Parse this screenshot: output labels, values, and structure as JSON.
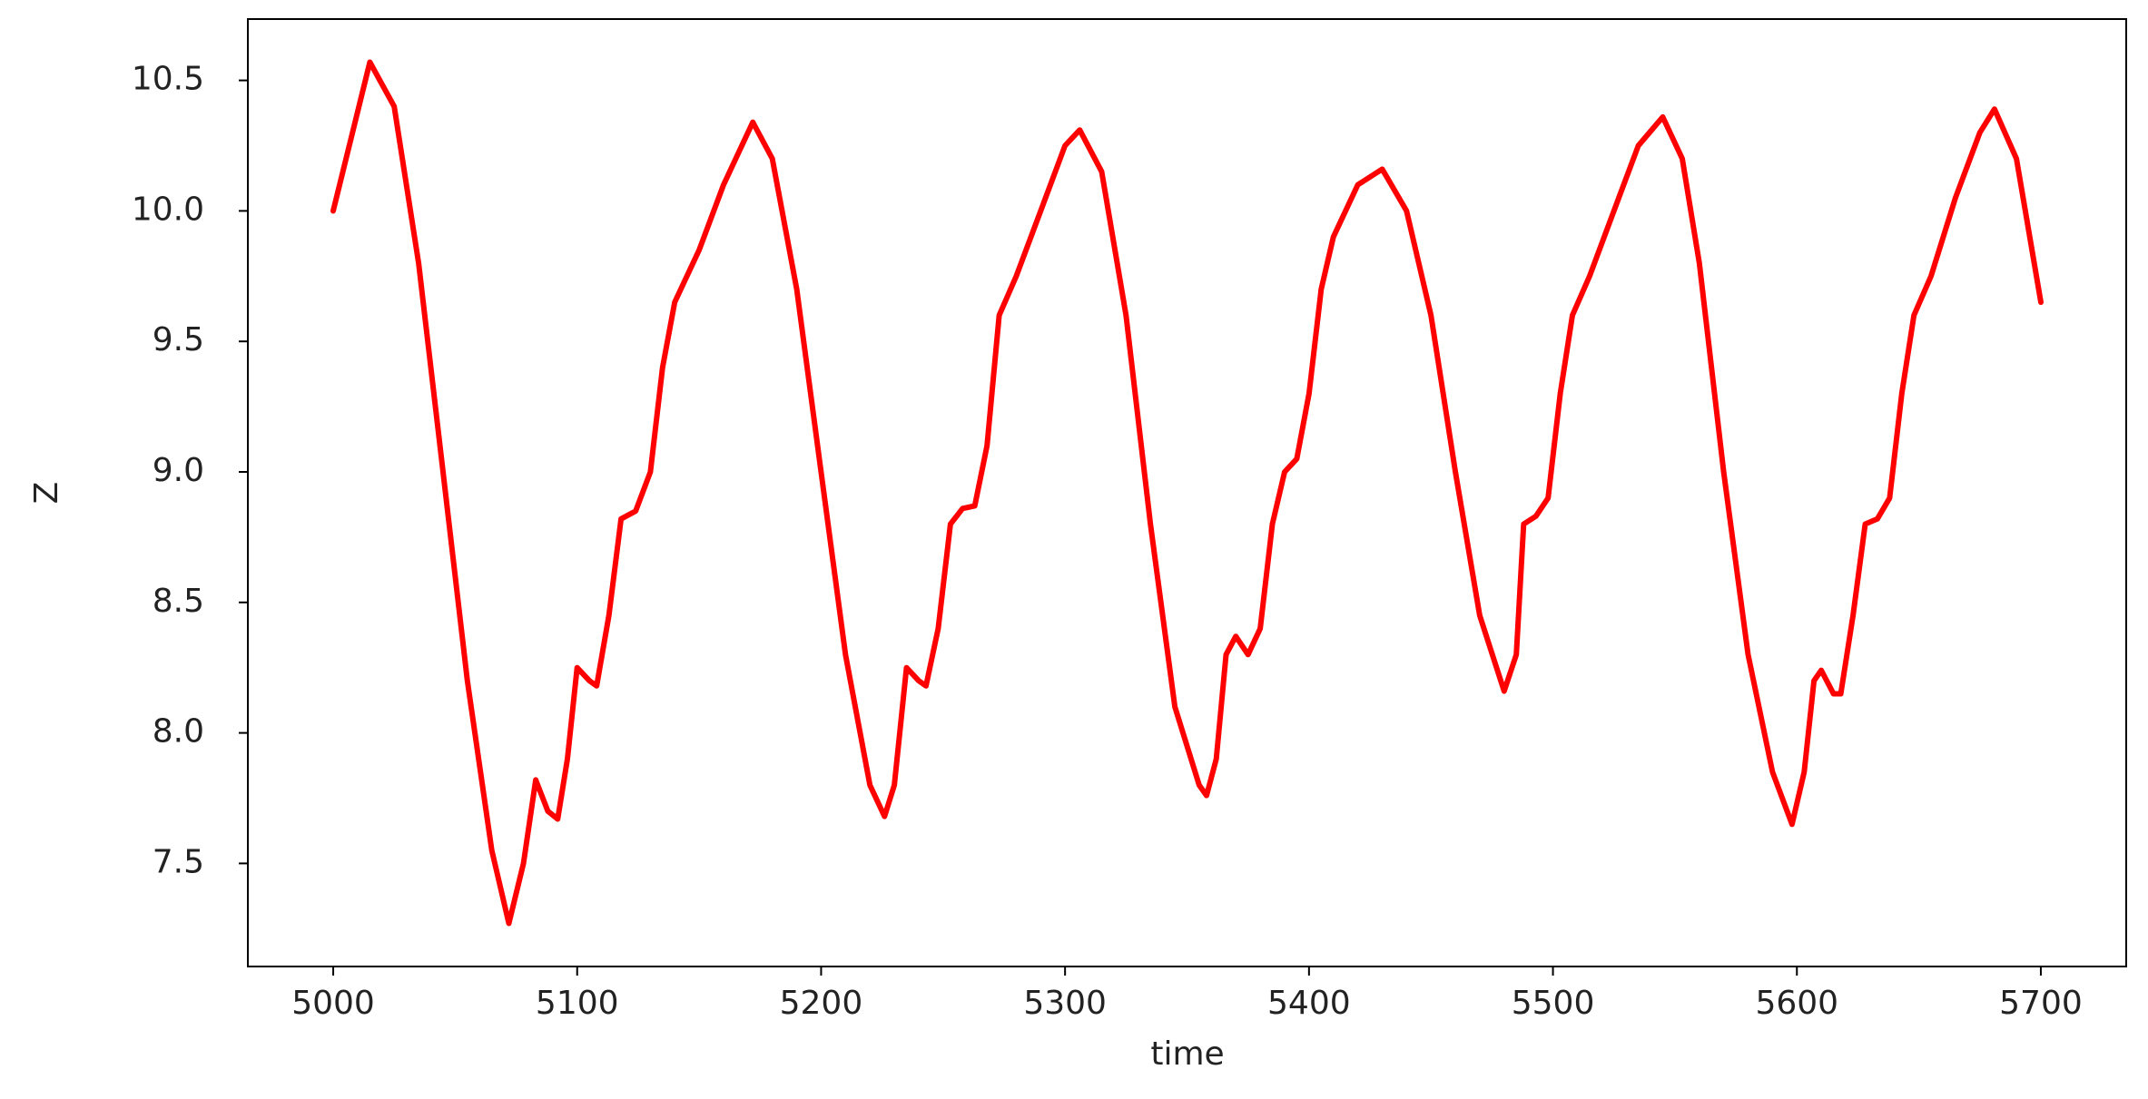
{
  "chart_data": {
    "type": "line",
    "x_label": "time",
    "y_label": "Z",
    "x": [
      5000,
      5015,
      5025,
      5035,
      5045,
      5055,
      5065,
      5072,
      5078,
      5083,
      5088,
      5092,
      5096,
      5100,
      5105,
      5108,
      5113,
      5118,
      5124,
      5130,
      5135,
      5140,
      5150,
      5160,
      5172,
      5180,
      5190,
      5200,
      5210,
      5220,
      5226,
      5230,
      5235,
      5240,
      5243,
      5248,
      5253,
      5258,
      5263,
      5268,
      5273,
      5280,
      5290,
      5300,
      5306,
      5315,
      5325,
      5335,
      5345,
      5355,
      5358,
      5362,
      5366,
      5370,
      5375,
      5380,
      5385,
      5390,
      5395,
      5400,
      5405,
      5410,
      5420,
      5430,
      5440,
      5450,
      5460,
      5470,
      5480,
      5485,
      5488,
      5493,
      5498,
      5503,
      5508,
      5515,
      5525,
      5535,
      5545,
      5553,
      5560,
      5570,
      5580,
      5590,
      5598,
      5603,
      5607,
      5610,
      5615,
      5618,
      5623,
      5628,
      5633,
      5638,
      5643,
      5648,
      5655,
      5665,
      5675,
      5681,
      5690,
      5700
    ],
    "series": [
      {
        "name": "Z",
        "color": "#ff0000",
        "values": [
          10.0,
          10.57,
          10.4,
          9.8,
          9.0,
          8.2,
          7.55,
          7.27,
          7.5,
          7.82,
          7.7,
          7.67,
          7.9,
          8.25,
          8.2,
          8.18,
          8.45,
          8.82,
          8.85,
          9.0,
          9.4,
          9.65,
          9.85,
          10.1,
          10.34,
          10.2,
          9.7,
          9.0,
          8.3,
          7.8,
          7.68,
          7.8,
          8.25,
          8.2,
          8.18,
          8.4,
          8.8,
          8.86,
          8.87,
          9.1,
          9.6,
          9.75,
          10.0,
          10.25,
          10.31,
          10.15,
          9.6,
          8.8,
          8.1,
          7.8,
          7.76,
          7.9,
          8.3,
          8.37,
          8.3,
          8.4,
          8.8,
          9.0,
          9.05,
          9.3,
          9.7,
          9.9,
          10.1,
          10.16,
          10.0,
          9.6,
          9.0,
          8.45,
          8.16,
          8.3,
          8.8,
          8.83,
          8.9,
          9.3,
          9.6,
          9.75,
          10.0,
          10.25,
          10.36,
          10.2,
          9.8,
          9.0,
          8.3,
          7.85,
          7.65,
          7.85,
          8.2,
          8.24,
          8.15,
          8.15,
          8.45,
          8.8,
          8.82,
          8.9,
          9.3,
          9.6,
          9.75,
          10.05,
          10.3,
          10.39,
          10.2,
          9.65
        ]
      }
    ],
    "xlim": [
      4965,
      5735
    ],
    "ylim": [
      7.105,
      10.735
    ],
    "xticks": [
      5000,
      5100,
      5200,
      5300,
      5400,
      5500,
      5600,
      5700
    ],
    "yticks": [
      7.5,
      {
        "value": 8.0,
        "label": "8.0"
      },
      8.5,
      {
        "value": 9.0,
        "label": "9.0"
      },
      9.5,
      {
        "value": 10.0,
        "label": "10.0"
      },
      10.5
    ]
  }
}
